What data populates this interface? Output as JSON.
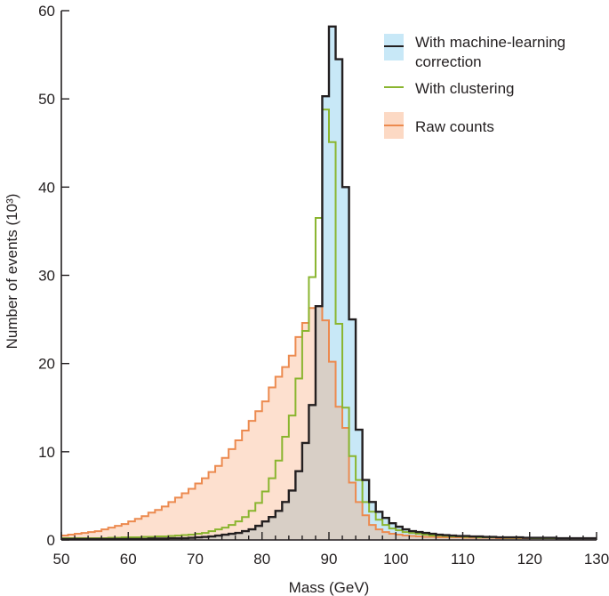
{
  "chart_data": {
    "type": "area",
    "xlabel": "Mass (GeV)",
    "ylabel": "Number of events (10³)",
    "xlim": [
      50,
      130
    ],
    "ylim": [
      0,
      60
    ],
    "x_ticks": [
      50,
      60,
      70,
      80,
      90,
      100,
      110,
      120,
      130
    ],
    "y_ticks": [
      0,
      10,
      20,
      30,
      40,
      50,
      60
    ],
    "bin_width": 1,
    "grid": false,
    "legend_position": "top-right",
    "series": [
      {
        "name": "With machine-learning correction",
        "line_color": "#231f20",
        "fill_color": "#c8e8f7",
        "x": [
          50,
          51,
          52,
          53,
          54,
          55,
          56,
          57,
          58,
          59,
          60,
          61,
          62,
          63,
          64,
          65,
          66,
          67,
          68,
          69,
          70,
          71,
          72,
          73,
          74,
          75,
          76,
          77,
          78,
          79,
          80,
          81,
          82,
          83,
          84,
          85,
          86,
          87,
          88,
          89,
          90,
          91,
          92,
          93,
          94,
          95,
          96,
          97,
          98,
          99,
          100,
          101,
          102,
          103,
          104,
          105,
          106,
          107,
          108,
          109,
          110,
          111,
          112,
          113,
          114,
          115,
          116,
          117,
          118,
          119,
          120,
          121,
          122,
          123,
          124,
          125,
          126,
          127,
          128,
          129
        ],
        "y": [
          0.1,
          0.1,
          0.1,
          0.1,
          0.1,
          0.1,
          0.1,
          0.1,
          0.1,
          0.1,
          0.1,
          0.1,
          0.1,
          0.15,
          0.15,
          0.15,
          0.2,
          0.2,
          0.2,
          0.25,
          0.3,
          0.35,
          0.4,
          0.5,
          0.6,
          0.7,
          0.8,
          1.0,
          1.2,
          1.6,
          2.1,
          2.6,
          3.3,
          4.3,
          5.6,
          7.8,
          11.0,
          15.3,
          26.5,
          50.3,
          58.2,
          54.5,
          40.0,
          25.0,
          12.5,
          6.8,
          4.3,
          3.2,
          2.5,
          1.9,
          1.5,
          1.2,
          1.0,
          0.9,
          0.8,
          0.7,
          0.6,
          0.55,
          0.5,
          0.45,
          0.45,
          0.4,
          0.4,
          0.35,
          0.35,
          0.3,
          0.3,
          0.3,
          0.3,
          0.25,
          0.25,
          0.25,
          0.25,
          0.25,
          0.2,
          0.2,
          0.2,
          0.2,
          0.2,
          0.2
        ]
      },
      {
        "name": "With clustering",
        "line_color": "#8ab52f",
        "fill_color": null,
        "x": [
          50,
          51,
          52,
          53,
          54,
          55,
          56,
          57,
          58,
          59,
          60,
          61,
          62,
          63,
          64,
          65,
          66,
          67,
          68,
          69,
          70,
          71,
          72,
          73,
          74,
          75,
          76,
          77,
          78,
          79,
          80,
          81,
          82,
          83,
          84,
          85,
          86,
          87,
          88,
          89,
          90,
          91,
          92,
          93,
          94,
          95,
          96,
          97,
          98,
          99,
          100,
          101,
          102,
          103,
          104,
          105,
          106,
          107,
          108,
          109,
          110,
          111,
          112,
          113,
          114,
          115,
          116,
          117,
          118,
          119,
          120,
          121,
          122,
          123,
          124,
          125,
          126,
          127,
          128,
          129
        ],
        "y": [
          0.2,
          0.2,
          0.2,
          0.2,
          0.2,
          0.2,
          0.2,
          0.25,
          0.25,
          0.3,
          0.3,
          0.3,
          0.35,
          0.35,
          0.4,
          0.4,
          0.45,
          0.5,
          0.55,
          0.6,
          0.7,
          0.8,
          1.0,
          1.2,
          1.4,
          1.7,
          2.1,
          2.6,
          3.3,
          4.2,
          5.5,
          7.0,
          9.0,
          11.7,
          14.1,
          18.3,
          23.7,
          29.8,
          36.5,
          48.8,
          45.1,
          24.5,
          15.0,
          9.5,
          6.8,
          4.3,
          3.2,
          2.3,
          1.7,
          1.3,
          1.1,
          0.9,
          0.8,
          0.7,
          0.6,
          0.5,
          0.5,
          0.45,
          0.4,
          0.4,
          0.35,
          0.35,
          0.3,
          0.3,
          0.3,
          0.3,
          0.25,
          0.25,
          0.25,
          0.25,
          0.2,
          0.2,
          0.2,
          0.2,
          0.2,
          0.2,
          0.2,
          0.2,
          0.2,
          0.2
        ]
      },
      {
        "name": "Raw counts",
        "line_color": "#ec8a4f",
        "fill_color": "#fcd9c4",
        "x": [
          50,
          51,
          52,
          53,
          54,
          55,
          56,
          57,
          58,
          59,
          60,
          61,
          62,
          63,
          64,
          65,
          66,
          67,
          68,
          69,
          70,
          71,
          72,
          73,
          74,
          75,
          76,
          77,
          78,
          79,
          80,
          81,
          82,
          83,
          84,
          85,
          86,
          87,
          88,
          89,
          90,
          91,
          92,
          93,
          94,
          95,
          96,
          97,
          98,
          99,
          100,
          101,
          102,
          103,
          104,
          105,
          106,
          107,
          108,
          109,
          110,
          111,
          112,
          113,
          114,
          115,
          116,
          117,
          118,
          119,
          120,
          121,
          122,
          123,
          124,
          125,
          126,
          127,
          128,
          129
        ],
        "y": [
          0.5,
          0.6,
          0.7,
          0.8,
          0.9,
          1.0,
          1.2,
          1.4,
          1.6,
          1.8,
          2.1,
          2.4,
          2.7,
          3.1,
          3.4,
          3.8,
          4.3,
          4.8,
          5.3,
          5.8,
          6.4,
          7.0,
          7.7,
          8.4,
          9.3,
          10.3,
          11.3,
          12.4,
          13.5,
          14.6,
          15.7,
          17.3,
          18.5,
          19.6,
          20.9,
          23.0,
          24.6,
          26.3,
          26.5,
          24.9,
          20.2,
          15.1,
          12.7,
          6.5,
          4.3,
          2.8,
          1.7,
          1.2,
          0.9,
          0.7,
          0.6,
          0.5,
          0.45,
          0.4,
          0.35,
          0.35,
          0.3,
          0.3,
          0.3,
          0.3,
          0.25,
          0.25,
          0.25,
          0.25,
          0.25,
          0.2,
          0.2,
          0.2,
          0.2,
          0.2,
          0.2,
          0.2,
          0.2,
          0.2,
          0.2,
          0.2,
          0.2,
          0.2,
          0.2,
          0.2
        ]
      }
    ]
  }
}
